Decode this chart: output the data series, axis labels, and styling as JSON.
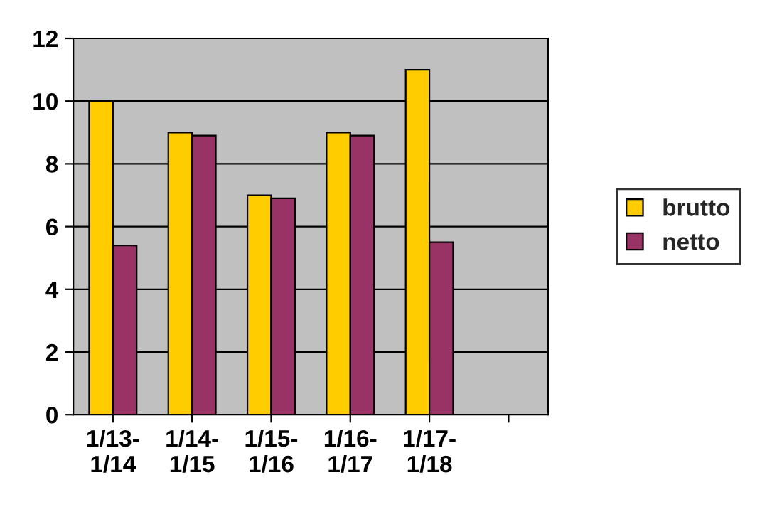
{
  "chart_data": {
    "type": "bar",
    "categories": [
      "1/13-\n1/14",
      "1/14-\n1/15",
      "1/15-\n1/16",
      "1/16-\n1/17",
      "1/17-\n1/18",
      null
    ],
    "series": [
      {
        "name": "brutto",
        "color": "#ffcc00",
        "values": [
          10,
          9,
          7,
          9,
          11,
          null
        ]
      },
      {
        "name": "netto",
        "color": "#993366",
        "values": [
          5.4,
          8.9,
          6.9,
          8.9,
          5.5,
          null
        ]
      }
    ],
    "ylim": [
      0,
      12
    ],
    "yticks": [
      0,
      2,
      4,
      6,
      8,
      10,
      12
    ],
    "grid": "y",
    "legend": "right"
  }
}
